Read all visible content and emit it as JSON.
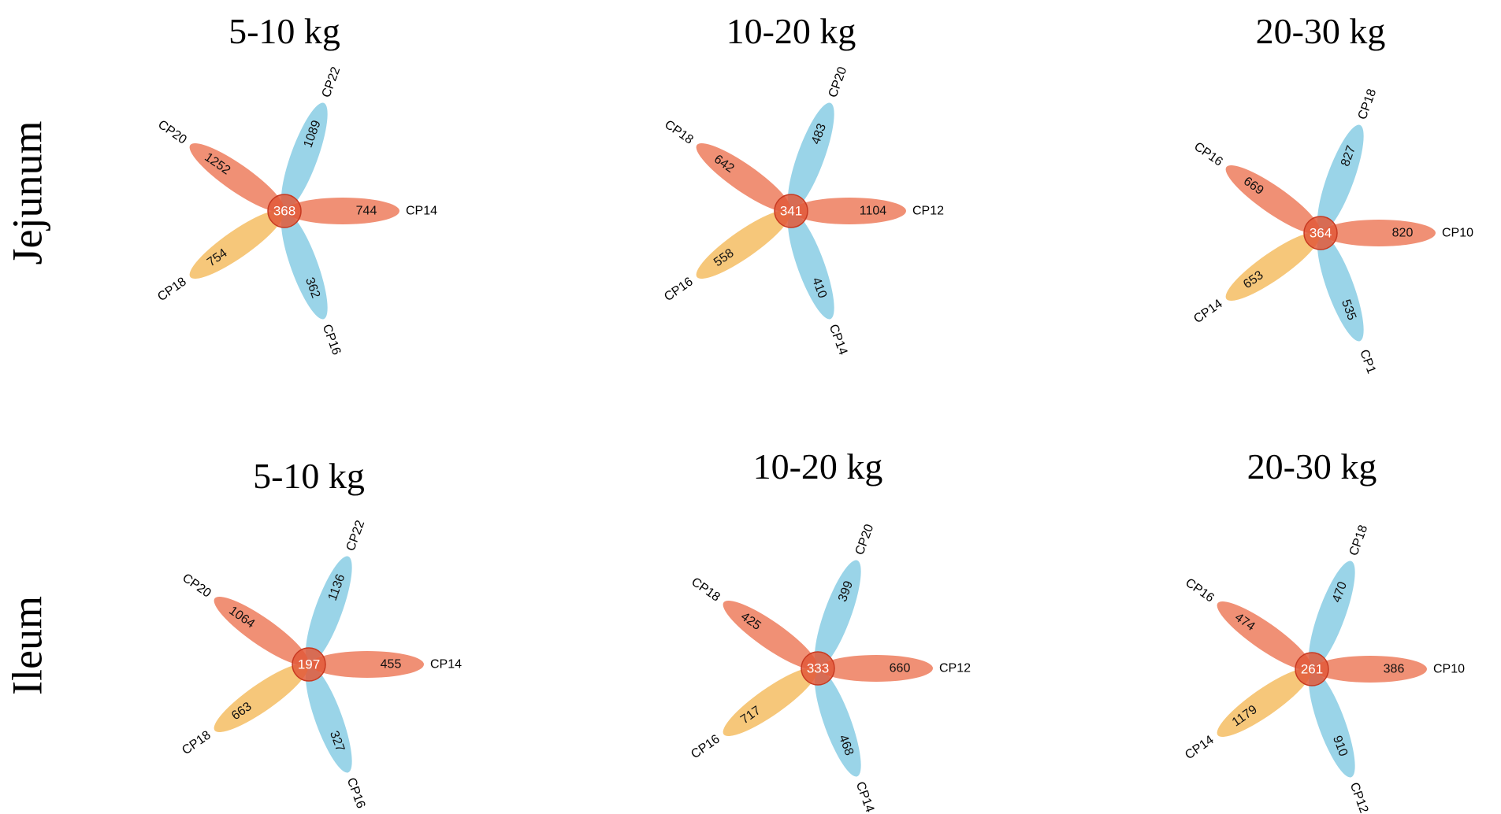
{
  "rows": [
    {
      "label": "Jejunum"
    },
    {
      "label": "Ileum"
    }
  ],
  "colors": {
    "red": "#ee8466",
    "blue": "#8fcfe6",
    "yellow": "#f5c16c",
    "core": "#e2593a",
    "core_stroke": "#c83a22"
  },
  "flowers": [
    {
      "title": "5-10 kg",
      "core": "368",
      "petals": [
        {
          "name": "CP14",
          "value": "744",
          "color": "red"
        },
        {
          "name": "CP22",
          "value": "1089",
          "color": "blue"
        },
        {
          "name": "CP20",
          "value": "1252",
          "color": "red"
        },
        {
          "name": "CP18",
          "value": "754",
          "color": "yellow"
        },
        {
          "name": "CP16",
          "value": "362",
          "color": "blue"
        }
      ]
    },
    {
      "title": "10-20 kg",
      "core": "341",
      "petals": [
        {
          "name": "CP12",
          "value": "1104",
          "color": "red"
        },
        {
          "name": "CP20",
          "value": "483",
          "color": "blue"
        },
        {
          "name": "CP18",
          "value": "642",
          "color": "red"
        },
        {
          "name": "CP16",
          "value": "558",
          "color": "yellow"
        },
        {
          "name": "CP14",
          "value": "410",
          "color": "blue"
        }
      ]
    },
    {
      "title": "20-30 kg",
      "core": "364",
      "petals": [
        {
          "name": "CP10",
          "value": "820",
          "color": "red"
        },
        {
          "name": "CP18",
          "value": "827",
          "color": "blue"
        },
        {
          "name": "CP16",
          "value": "669",
          "color": "red"
        },
        {
          "name": "CP14",
          "value": "653",
          "color": "yellow"
        },
        {
          "name": "CP1",
          "value": "535",
          "color": "blue"
        }
      ]
    },
    {
      "title": "5-10 kg",
      "core": "197",
      "petals": [
        {
          "name": "CP14",
          "value": "455",
          "color": "red"
        },
        {
          "name": "CP22",
          "value": "1136",
          "color": "blue"
        },
        {
          "name": "CP20",
          "value": "1064",
          "color": "red"
        },
        {
          "name": "CP18",
          "value": "663",
          "color": "yellow"
        },
        {
          "name": "CP16",
          "value": "327",
          "color": "blue"
        }
      ]
    },
    {
      "title": "10-20 kg",
      "core": "333",
      "petals": [
        {
          "name": "CP12",
          "value": "660",
          "color": "red"
        },
        {
          "name": "CP20",
          "value": "399",
          "color": "blue"
        },
        {
          "name": "CP18",
          "value": "425",
          "color": "red"
        },
        {
          "name": "CP16",
          "value": "717",
          "color": "yellow"
        },
        {
          "name": "CP14",
          "value": "468",
          "color": "blue"
        }
      ]
    },
    {
      "title": "20-30 kg",
      "core": "261",
      "petals": [
        {
          "name": "CP10",
          "value": "386",
          "color": "red"
        },
        {
          "name": "CP18",
          "value": "470",
          "color": "blue"
        },
        {
          "name": "CP16",
          "value": "474",
          "color": "red"
        },
        {
          "name": "CP14",
          "value": "1179",
          "color": "yellow"
        },
        {
          "name": "CP12",
          "value": "910",
          "color": "blue"
        }
      ]
    }
  ]
}
